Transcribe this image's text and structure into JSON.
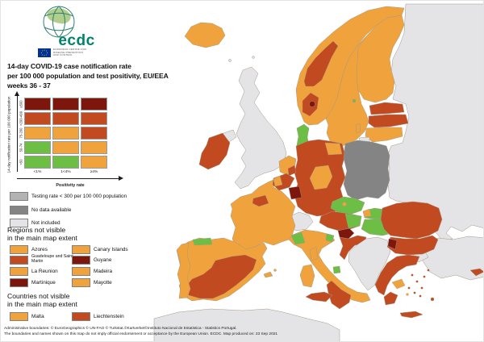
{
  "logo": {
    "brand": "ecdc",
    "subtext_lines": [
      "EUROPEAN CENTRE FOR",
      "DISEASE PREVENTION",
      "AND CONTROL"
    ]
  },
  "title": {
    "line1": "14-day COVID-19 case notification rate",
    "line2": "per 100 000 population and test positivity, EU/EEA",
    "line3": "weeks 36 - 37"
  },
  "matrix": {
    "y_axis_label": "14-day notification rate per 100 000 population",
    "x_axis_label": "Positivity rate",
    "row_labels": [
      "≥500",
      ">200-499",
      "75-200",
      "50-74",
      "<50"
    ],
    "col_labels": [
      "<1%",
      "1<4%",
      "≥4%"
    ],
    "cells": [
      [
        "darkred",
        "darkred",
        "darkred"
      ],
      [
        "red",
        "red",
        "red"
      ],
      [
        "orange",
        "orange",
        "red"
      ],
      [
        "green",
        "orange",
        "orange"
      ],
      [
        "green",
        "green",
        "orange"
      ]
    ]
  },
  "legend_items": [
    {
      "label": "Testing rate < 300 per 100 000 population",
      "color_key": "testing_gray"
    },
    {
      "label": "No data available",
      "color_key": "nodata_gray"
    },
    {
      "label": "Not included",
      "color_key": "notincluded_gray"
    }
  ],
  "regions_section": {
    "title_line1": "Regions not visible",
    "title_line2": "in the main map extent",
    "items": [
      {
        "label": "Azores",
        "color_key": "orange"
      },
      {
        "label": "Canary Islands",
        "color_key": "orange"
      },
      {
        "label": "Guadeloupe and Saint Martin",
        "color_key": "red"
      },
      {
        "label": "Guyane",
        "color_key": "darkred"
      },
      {
        "label": "La Reunion",
        "color_key": "orange"
      },
      {
        "label": "Madeira",
        "color_key": "orange"
      },
      {
        "label": "Martinique",
        "color_key": "darkred"
      },
      {
        "label": "Mayotte",
        "color_key": "orange"
      }
    ]
  },
  "countries_section": {
    "title_line1": "Countries not visible",
    "title_line2": "in the main map extent",
    "items": [
      {
        "label": "Malta",
        "color_key": "orange"
      },
      {
        "label": "Liechtenstein",
        "color_key": "red"
      }
    ]
  },
  "footer": {
    "line1": "Administrative boundaries: © EuroGeographics © UN-FAO © Turkstat.©Kartverket©Instituto Nacional de Estatistica - Statistics Portugal.",
    "line2": "The boundaries and names shown on this map do not imply official endorsement or acceptance by the European Union. ECDC. Map produced on: 23 Sep 2021"
  },
  "palette": {
    "orange": "#F0A33C",
    "green": "#6DBE45",
    "red": "#C14A20",
    "darkred": "#7D170E",
    "testing_gray": "#B3B3B3",
    "nodata_gray": "#848484",
    "notincluded_gray": "#E4E4E6"
  },
  "map": {
    "regions": {
      "eastern-europe": "notincluded_gray",
      "africa": "notincluded_gray",
      "turkey": "notincluded_gray",
      "thrace": "notincluded_gray",
      "cyprus": "red",
      "iceland": "orange",
      "faroe": "notincluded_gray",
      "shetland": "notincluded_gray",
      "norway": "orange",
      "norway-trondelag": "red",
      "norway-south": "red",
      "norway-oslo": "darkred",
      "sweden": "orange",
      "gotland": "orange",
      "aland": "green",
      "finland": "orange",
      "estonia": "red",
      "latvia": "red",
      "lithuania": "orange",
      "kaliningrad": "notincluded_gray",
      "denmark-jutland": "green",
      "denmark-funen": "orange",
      "denmark-zealand": "orange",
      "uk": "notincluded_gray",
      "northern-ireland": "notincluded_gray",
      "ireland": "red",
      "germany": "red",
      "germany-center": "orange",
      "germany-northeast": "orange",
      "poland": "nodata_gray",
      "czechia": "green",
      "prague": "orange",
      "slovakia": "green",
      "slovakia-east": "orange",
      "slovakia-west": "orange",
      "austria": "red",
      "austria-east": "green",
      "switzerland": "notincluded_gray",
      "hungary": "green",
      "hungary-northeast": "orange",
      "france": "orange",
      "france-north": "red",
      "netherlands": "orange",
      "netherlands-south": "red",
      "belgium": "red",
      "belgium-west": "orange",
      "luxembourg-area": "darkred",
      "italy": "orange",
      "italy-northwest": "green",
      "italy-northeast": "green",
      "italy-molise": "green",
      "italy-south": "red",
      "sicily": "red",
      "sardinia": "orange",
      "corsica": "orange",
      "slovenia": "darkred",
      "croatia": "red",
      "western-balkans": "notincluded_gray",
      "romania": "red",
      "bulgaria": "red",
      "bulgaria-west": "darkred",
      "greece": "red",
      "peloponnese": "red",
      "attica": "orange",
      "crete": "red",
      "aegean-islands": "red",
      "aegean-island-orange": "orange",
      "spain": "orange",
      "spain-north": "green",
      "spain-south": "red",
      "balearics": "orange",
      "portugal": "orange"
    }
  }
}
